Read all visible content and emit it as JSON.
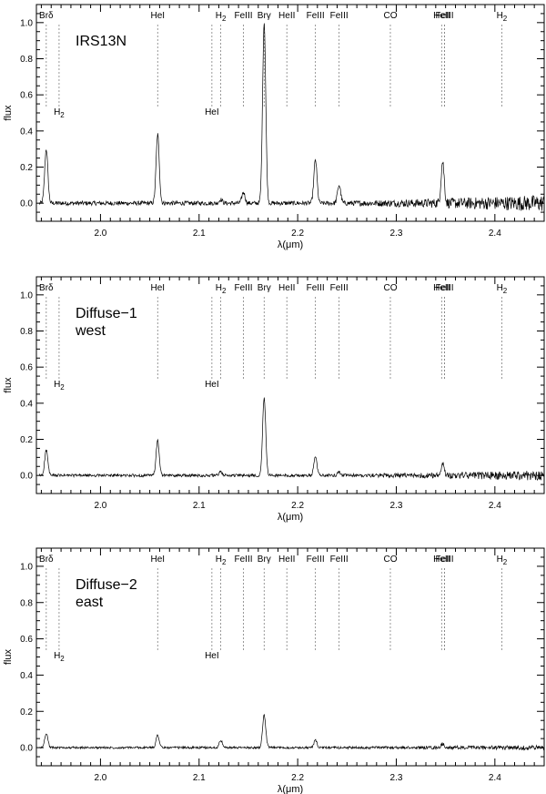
{
  "chart_data": [
    {
      "type": "line",
      "title_lines": [
        "IRS13N"
      ],
      "xlabel": "λ(μm)",
      "ylabel": "flux",
      "xlim": [
        1.935,
        2.45
      ],
      "ylim": [
        -0.1,
        1.1
      ],
      "xticks": [
        2.0,
        2.1,
        2.2,
        2.3,
        2.4
      ],
      "xtick_labels": [
        "2.0",
        "2.1",
        "2.2",
        "2.3",
        "2.4"
      ],
      "yticks": [
        0.0,
        0.2,
        0.4,
        0.6,
        0.8,
        1.0
      ],
      "ytick_labels": [
        "0.0",
        "0.2",
        "0.4",
        "0.6",
        "0.8",
        "1.0"
      ],
      "grid": false,
      "baseline": 0.0,
      "noise": 0.012,
      "red_noise": 0.035,
      "emission_lines": [
        {
          "x": 1.945,
          "peak": 0.3
        },
        {
          "x": 2.058,
          "peak": 0.38
        },
        {
          "x": 2.122,
          "peak": 0.02
        },
        {
          "x": 2.145,
          "peak": 0.06
        },
        {
          "x": 2.166,
          "peak": 1.0
        },
        {
          "x": 2.218,
          "peak": 0.24
        },
        {
          "x": 2.242,
          "peak": 0.1
        },
        {
          "x": 2.347,
          "peak": 0.23
        }
      ]
    },
    {
      "type": "line",
      "title_lines": [
        "Diffuse−1",
        "west"
      ],
      "xlabel": "λ(μm)",
      "ylabel": "flux",
      "xlim": [
        1.935,
        2.45
      ],
      "ylim": [
        -0.1,
        1.1
      ],
      "xticks": [
        2.0,
        2.1,
        2.2,
        2.3,
        2.4
      ],
      "xtick_labels": [
        "2.0",
        "2.1",
        "2.2",
        "2.3",
        "2.4"
      ],
      "yticks": [
        0.0,
        0.2,
        0.4,
        0.6,
        0.8,
        1.0
      ],
      "ytick_labels": [
        "0.0",
        "0.2",
        "0.4",
        "0.6",
        "0.8",
        "1.0"
      ],
      "grid": false,
      "baseline": 0.0,
      "noise": 0.008,
      "red_noise": 0.02,
      "emission_lines": [
        {
          "x": 1.945,
          "peak": 0.14
        },
        {
          "x": 2.058,
          "peak": 0.19
        },
        {
          "x": 2.122,
          "peak": 0.02
        },
        {
          "x": 2.166,
          "peak": 0.43
        },
        {
          "x": 2.218,
          "peak": 0.1
        },
        {
          "x": 2.242,
          "peak": 0.02
        },
        {
          "x": 2.347,
          "peak": 0.07
        }
      ]
    },
    {
      "type": "line",
      "title_lines": [
        "Diffuse−2",
        "east"
      ],
      "xlabel": "λ(μm)",
      "ylabel": "flux",
      "xlim": [
        1.935,
        2.45
      ],
      "ylim": [
        -0.1,
        1.1
      ],
      "xticks": [
        2.0,
        2.1,
        2.2,
        2.3,
        2.4
      ],
      "xtick_labels": [
        "2.0",
        "2.1",
        "2.2",
        "2.3",
        "2.4"
      ],
      "yticks": [
        0.0,
        0.2,
        0.4,
        0.6,
        0.8,
        1.0
      ],
      "ytick_labels": [
        "0.0",
        "0.2",
        "0.4",
        "0.6",
        "0.8",
        "1.0"
      ],
      "grid": false,
      "baseline": 0.0,
      "noise": 0.006,
      "red_noise": 0.008,
      "emission_lines": [
        {
          "x": 1.945,
          "peak": 0.08
        },
        {
          "x": 2.058,
          "peak": 0.07
        },
        {
          "x": 2.122,
          "peak": 0.04
        },
        {
          "x": 2.166,
          "peak": 0.18
        },
        {
          "x": 2.218,
          "peak": 0.04
        },
        {
          "x": 2.347,
          "peak": 0.02
        }
      ]
    }
  ],
  "line_identifications": [
    {
      "label": "Brδ",
      "x": [
        1.945
      ],
      "row": "top"
    },
    {
      "label": "H2",
      "x": [
        1.958
      ],
      "row": "low"
    },
    {
      "label": "HeI",
      "x": [
        2.058
      ],
      "row": "top"
    },
    {
      "label": "HeI",
      "x": [
        2.113
      ],
      "row": "low"
    },
    {
      "label": "H2",
      "x": [
        2.122
      ],
      "row": "top"
    },
    {
      "label": "FeIII",
      "x": [
        2.145
      ],
      "row": "top"
    },
    {
      "label": "Brγ",
      "x": [
        2.166
      ],
      "row": "top"
    },
    {
      "label": "HeII",
      "x": [
        2.189
      ],
      "row": "top"
    },
    {
      "label": "FeIII",
      "x": [
        2.218
      ],
      "row": "top"
    },
    {
      "label": "FeIII",
      "x": [
        2.242
      ],
      "row": "top"
    },
    {
      "label": "CO",
      "x": [
        2.294
      ],
      "row": "top"
    },
    {
      "label": "HeII",
      "x": [
        2.346,
        2.349
      ],
      "row": "top"
    },
    {
      "label": "FeIII",
      "x": [
        2.349
      ],
      "row": "top"
    },
    {
      "label": "H2",
      "x": [
        2.407
      ],
      "row": "top"
    }
  ]
}
